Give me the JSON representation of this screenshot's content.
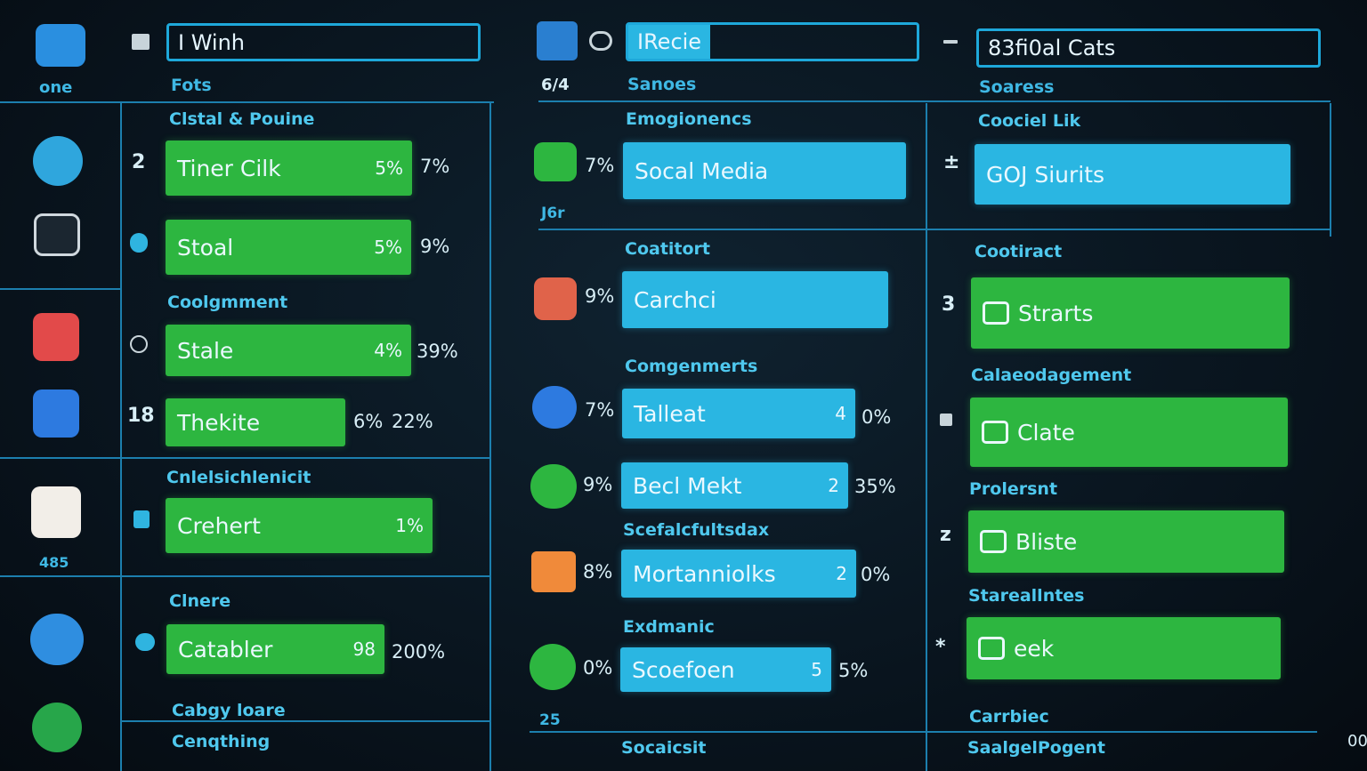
{
  "sidebar": {
    "labels": [
      "one",
      "485"
    ]
  },
  "panel_1": {
    "search": "I Winh",
    "caption": "Fots",
    "headings": [
      "Clstal & Pouine",
      "Coolgmment",
      "Cnlelsichlenicit",
      "Clnere",
      "Cabgy loare",
      "Cenqthing"
    ],
    "rows": [
      {
        "marker": "2",
        "label": "Tiner Cilk",
        "inner": "5%",
        "outer": "7%"
      },
      {
        "label": "Stoal",
        "inner": "5%",
        "outer": "9%"
      },
      {
        "label": "Stale",
        "inner": "4%",
        "outer": "39%"
      },
      {
        "marker": "18",
        "label": "Thekite",
        "inner": "6%",
        "outer": "22%"
      },
      {
        "label": "Crehert",
        "inner": "1%"
      },
      {
        "label": "Catabler",
        "inner": "98",
        "outer": "200%"
      }
    ]
  },
  "panel_2": {
    "search": "IRecie",
    "tag": "6/4",
    "caption": "Sanoes",
    "headings": [
      "Emogionencs",
      "Coatitort",
      "Comgenmerts",
      "Scefalcfultsdax",
      "Exdmanic",
      "Socaicsit"
    ],
    "notes": [
      "J6r",
      "25"
    ],
    "rows": [
      {
        "pct": "7%",
        "label": "Socal Media"
      },
      {
        "pct": "9%",
        "label": "Carchci"
      },
      {
        "pct": "7%",
        "label": "Talleat",
        "inner": "4",
        "outer": "0%"
      },
      {
        "pct": "9%",
        "label": "Becl Mekt",
        "inner": "2",
        "outer": "35%"
      },
      {
        "pct": "8%",
        "label": "Mortanniolks",
        "inner": "2",
        "outer": "0%"
      },
      {
        "pct": "0%",
        "label": "Scoefoen",
        "inner": "5",
        "outer": "5%"
      }
    ]
  },
  "panel_3": {
    "search": "83fi0al Cats",
    "caption": "Soaress",
    "headings": [
      "Coociel Lik",
      "Cootiract",
      "Calaeodagement",
      "Prolersnt",
      "Stareallntes",
      "Carrbiec",
      "SaalgelPogent"
    ],
    "rows": [
      {
        "marker": "±",
        "label": "GOJ Siurits"
      },
      {
        "marker": "3",
        "label": "Strarts"
      },
      {
        "label": "Clate"
      },
      {
        "marker": "z",
        "label": "Bliste"
      },
      {
        "marker": "*",
        "label": "eek"
      }
    ]
  },
  "corner": "00"
}
